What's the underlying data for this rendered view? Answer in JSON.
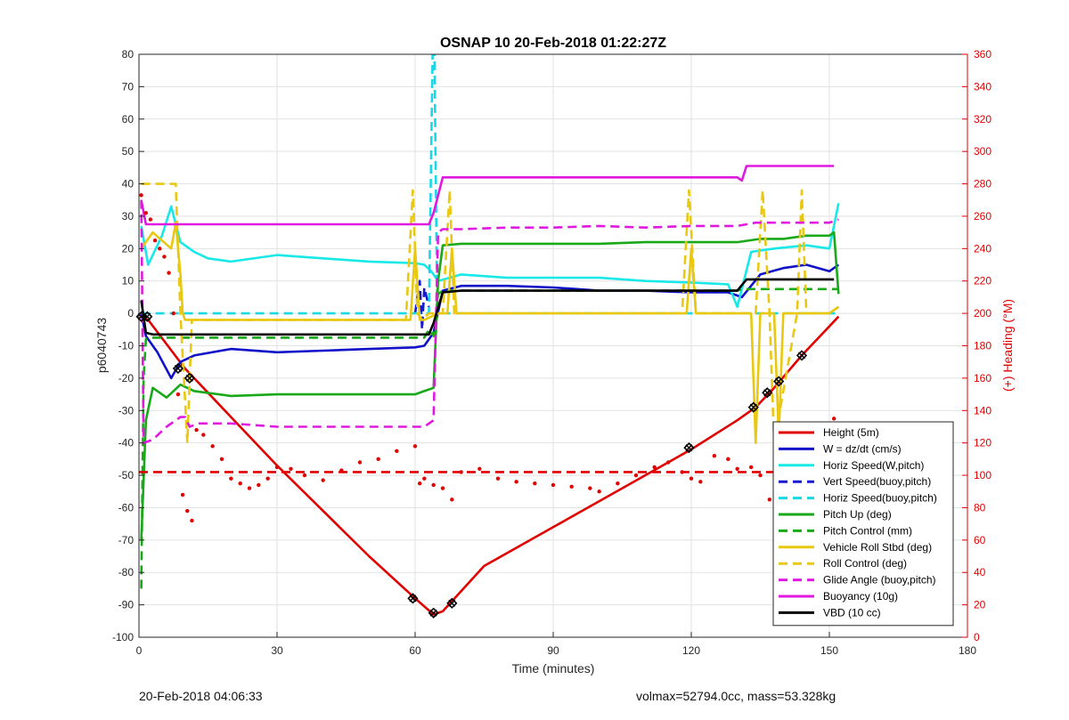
{
  "chart_data": {
    "type": "line",
    "title": "OSNAP 10 20-Feb-2018 01:22:27Z",
    "xlabel": "Time (minutes)",
    "ylabel": "p6040743",
    "y2label": "(+) Heading (°M)",
    "xlim": [
      0,
      180
    ],
    "ylim": [
      -100,
      80
    ],
    "y2lim": [
      0,
      360
    ],
    "xticks": [
      "0",
      "30",
      "60",
      "90",
      "120",
      "150",
      "180"
    ],
    "yticks": [
      "-100",
      "-90",
      "-80",
      "-70",
      "-60",
      "-50",
      "-40",
      "-30",
      "-20",
      "-10",
      "0",
      "10",
      "20",
      "30",
      "40",
      "50",
      "60",
      "70",
      "80"
    ],
    "y2ticks": [
      "0",
      "20",
      "40",
      "60",
      "80",
      "100",
      "120",
      "140",
      "160",
      "180",
      "200",
      "220",
      "240",
      "260",
      "280",
      "300",
      "320",
      "340",
      "360"
    ],
    "grid": true,
    "legend_position": "bottom-right",
    "series": [
      {
        "name": "Height (5m)",
        "color": "#e00000",
        "dash": "solid",
        "x": [
          0.5,
          2,
          10,
          20,
          30,
          40,
          50,
          60,
          64,
          66,
          75,
          90,
          105,
          120,
          130,
          134,
          138,
          144,
          150,
          152
        ],
        "y": [
          -1,
          -2,
          -17,
          -32,
          -47,
          -61,
          -75,
          -88,
          -93,
          -92,
          -78,
          -66,
          -54,
          -42,
          -33,
          -29,
          -23,
          -13,
          -4,
          -1
        ]
      },
      {
        "name": "W = dz/dt (cm/s)",
        "color": "#1010c8",
        "dash": "solid",
        "x": [
          0.5,
          1.5,
          4,
          7,
          9,
          12,
          20,
          30,
          40,
          50,
          60,
          62,
          64,
          66,
          70,
          80,
          90,
          100,
          110,
          120,
          128,
          131,
          135,
          140,
          145,
          150,
          152
        ],
        "y": [
          0,
          -7,
          -12,
          -20,
          -15,
          -13,
          -11,
          -12,
          -11.5,
          -11,
          -10.5,
          -10,
          -6,
          7,
          8.5,
          8.5,
          8,
          7,
          7,
          6.5,
          6.5,
          5,
          12,
          14,
          15,
          13,
          15
        ]
      },
      {
        "name": "Horiz Speed(W,pitch)",
        "color": "#18e8e8",
        "dash": "solid",
        "x": [
          0.5,
          2,
          5,
          7,
          9,
          12,
          15,
          20,
          30,
          40,
          50,
          60,
          62,
          63.5,
          65,
          70,
          80,
          90,
          100,
          110,
          120,
          128,
          130,
          133,
          138,
          145,
          150,
          152
        ],
        "y": [
          27,
          15,
          24,
          33,
          22,
          19,
          17,
          16,
          18,
          17,
          16,
          15.5,
          15,
          13,
          10,
          12,
          11,
          11,
          11,
          10,
          9.5,
          9,
          2,
          19,
          20,
          21,
          20,
          34
        ]
      },
      {
        "name": "Vert Speed(buoy,pitch)",
        "color": "#1818d0",
        "dash": "dashed",
        "x": [
          60,
          61,
          61.5,
          62,
          63
        ],
        "y": [
          0,
          10,
          -5,
          8,
          2
        ]
      },
      {
        "name": "Horiz Speed(buoy,pitch)",
        "color": "#18d8e8",
        "dash": "dashed",
        "x": [
          0.5,
          63,
          63.8,
          64,
          64.2,
          64.8,
          65.5,
          152
        ],
        "y": [
          0,
          0,
          80,
          80,
          80,
          0,
          0,
          0
        ]
      },
      {
        "name": "Pitch Up (deg)",
        "color": "#18a818",
        "dash": "solid",
        "x": [
          0.5,
          1.5,
          3,
          6,
          9,
          12,
          20,
          30,
          40,
          50,
          60,
          62,
          64,
          65,
          66,
          70,
          80,
          90,
          100,
          110,
          120,
          130,
          135,
          140,
          145,
          150,
          151,
          152
        ],
        "y": [
          -70,
          -33,
          -23,
          -26,
          -22,
          -24,
          -25.5,
          -25,
          -25,
          -25,
          -25,
          -24,
          -23,
          10,
          21,
          21.5,
          21.5,
          21.5,
          21.5,
          22,
          22,
          22,
          23,
          23,
          24,
          24,
          25,
          6
        ]
      },
      {
        "name": "Pitch Control (mm)",
        "color": "#18a818",
        "dash": "dashed",
        "x": [
          0.5,
          1,
          1.5,
          2,
          10,
          20,
          30,
          40,
          50,
          60,
          62,
          63,
          64,
          65,
          66,
          70,
          90,
          110,
          120,
          130,
          131,
          140,
          152
        ],
        "y": [
          -85,
          -20,
          -8,
          -7.5,
          -7.5,
          -7.5,
          -7.5,
          -7.5,
          -7.5,
          -7.5,
          -7.5,
          -5,
          -7,
          6,
          7,
          7,
          7,
          7,
          7,
          7,
          7.5,
          7.5,
          7.5
        ]
      },
      {
        "name": "Vehicle Roll Stbd (deg)",
        "color": "#e8c810",
        "dash": "solid",
        "x": [
          0.5,
          3,
          7,
          8,
          9,
          9.5,
          10,
          11,
          12,
          13,
          20,
          30,
          40,
          50,
          59,
          60,
          61,
          62,
          65,
          67,
          68,
          69,
          70,
          90,
          100,
          110,
          119,
          120,
          121,
          133,
          134,
          135,
          136,
          137,
          138,
          139,
          140,
          150,
          152
        ],
        "y": [
          20,
          25,
          20,
          28,
          12,
          0,
          -2,
          -2,
          -2,
          -2,
          -2,
          -2,
          -2,
          -2,
          -2,
          20,
          -2,
          -2,
          0,
          0,
          20,
          0,
          0,
          0,
          0,
          0,
          0,
          20,
          0,
          0,
          -40,
          0,
          0,
          0,
          0,
          -38,
          0,
          0,
          2
        ]
      },
      {
        "name": "Roll Control (deg)",
        "color": "#e8c810",
        "dash": "dashed",
        "x": [
          0.5,
          2,
          8,
          9,
          10.5,
          11.5,
          12,
          20,
          30,
          40,
          50,
          58,
          59.5,
          60.5,
          61.5,
          63,
          66,
          67.5,
          68.5,
          69.5,
          90,
          110,
          118,
          119.5,
          121,
          134,
          135.5,
          137,
          138,
          143,
          144,
          145,
          150,
          152
        ],
        "y": [
          40,
          40,
          40,
          0,
          -40,
          -2,
          -2,
          -2,
          -2,
          -2,
          -2,
          -2,
          38,
          0,
          -2,
          0,
          0,
          38,
          0,
          0,
          0,
          0,
          0,
          38,
          0,
          0,
          38,
          0,
          -40,
          0,
          38,
          0,
          0,
          2
        ]
      },
      {
        "name": "Glide Angle (buoy,pitch)",
        "color": "#e018e0",
        "dash": "dashed",
        "x": [
          0.5,
          1,
          3,
          6,
          9,
          10,
          11,
          13,
          20,
          30,
          40,
          50,
          60,
          62,
          64,
          65,
          66,
          68,
          70,
          80,
          90,
          100,
          110,
          120,
          130,
          134,
          140,
          145,
          150,
          152
        ],
        "y": [
          35,
          -40,
          -39,
          -35,
          -32,
          -32,
          -35,
          -34,
          -34,
          -35,
          -35,
          -35,
          -35,
          -35,
          -33,
          25,
          26,
          26,
          26,
          26.5,
          26.5,
          27,
          26.5,
          27,
          27,
          28,
          28,
          28,
          28,
          29
        ]
      },
      {
        "name": "Buoyancy (10g)",
        "color": "#e018e0",
        "dash": "solid",
        "x": [
          0.5,
          1.5,
          10,
          20,
          30,
          40,
          50,
          60,
          63,
          64,
          66,
          70,
          90,
          110,
          128,
          130,
          131,
          132,
          140,
          151
        ],
        "y": [
          35,
          27.5,
          27.5,
          27.5,
          27.5,
          27.5,
          27.5,
          27.5,
          27.5,
          31,
          42,
          42,
          42,
          42,
          42,
          42,
          41,
          45.5,
          45.5,
          45.5
        ]
      },
      {
        "name": "VBD (10 cc)",
        "color": "#000000",
        "dash": "solid",
        "x": [
          0.5,
          1.5,
          3,
          10,
          20,
          30,
          40,
          50,
          60,
          63,
          64,
          66,
          70,
          90,
          110,
          125,
          130,
          132,
          140,
          151
        ],
        "y": [
          4,
          -6,
          -6.5,
          -6.5,
          -6.5,
          -6.5,
          -6.5,
          -6.5,
          -6.5,
          -6.5,
          -3,
          6.5,
          7,
          7,
          7,
          7,
          7,
          10.5,
          10.5,
          10.5
        ]
      },
      {
        "name": "",
        "color": "#e00000",
        "dash": "dashed",
        "axis": "right",
        "x": [
          0,
          152
        ],
        "y": [
          102,
          102
        ]
      },
      {
        "name": "",
        "color": "#e00000",
        "dash": "dots",
        "axis": "right",
        "x": [
          0.5,
          1.5,
          2.5,
          3.5,
          4.5,
          5.5,
          6.5,
          7.5,
          8.5,
          9.5,
          10.5,
          11.5,
          12.5,
          14,
          16,
          18,
          20,
          22,
          24,
          26,
          28,
          30,
          33,
          36,
          40,
          44,
          48,
          52,
          56,
          60,
          61,
          62,
          64,
          66,
          68,
          70,
          74,
          78,
          82,
          86,
          90,
          94,
          98,
          100,
          104,
          108,
          112,
          115,
          118,
          120,
          122,
          125,
          128,
          130,
          133,
          135,
          137,
          140,
          143,
          146,
          149,
          151
        ],
        "y": [
          273,
          262,
          258,
          245,
          240,
          235,
          225,
          200,
          150,
          88,
          78,
          72,
          128,
          125,
          118,
          110,
          98,
          95,
          92,
          94,
          98,
          105,
          104,
          100,
          97,
          103,
          108,
          110,
          115,
          118,
          95,
          98,
          94,
          92,
          85,
          102,
          104,
          98,
          96,
          95,
          94,
          93,
          92,
          90,
          95,
          100,
          105,
          108,
          102,
          98,
          96,
          112,
          110,
          104,
          105,
          100,
          85,
          90,
          98,
          110,
          115,
          135
        ]
      }
    ],
    "markers": {
      "name": "",
      "x": [
        0.5,
        1.8,
        8.5,
        11,
        59.5,
        64,
        68,
        119.5,
        133.5,
        136.5,
        139,
        144
      ],
      "y": [
        -1,
        -1,
        -17,
        -20,
        -88,
        -92.5,
        -89.5,
        -41.5,
        -29,
        -24.5,
        -21,
        -13
      ]
    }
  },
  "footer": {
    "timestamp": "20-Feb-2018 04:06:33",
    "summary": "volmax=52794.0cc, mass=53.328kg"
  }
}
